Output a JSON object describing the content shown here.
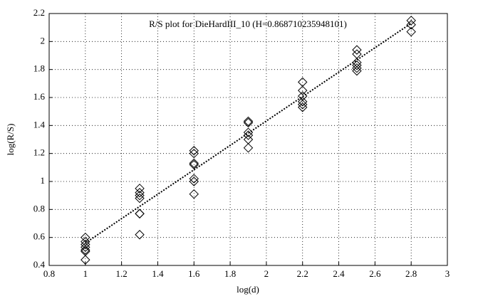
{
  "chart_data": {
    "type": "scatter",
    "title": "R/S plot for DieHardIII_10 (H=0.868710235948101)",
    "xlabel": "log(d)",
    "ylabel": "log(R/S)",
    "xlim": [
      0.8,
      3
    ],
    "ylim": [
      0.4,
      2.2
    ],
    "xticks": [
      0.8,
      1,
      1.2,
      1.4,
      1.6,
      1.8,
      2,
      2.2,
      2.4,
      2.6,
      2.8,
      3
    ],
    "yticks": [
      0.4,
      0.6,
      0.8,
      1,
      1.2,
      1.4,
      1.6,
      1.8,
      2,
      2.2
    ],
    "grid": true,
    "series": [
      {
        "type": "scatter",
        "marker": "diamond",
        "color": "#000000",
        "x": [
          1,
          1,
          1,
          1,
          1,
          1,
          1,
          1.3,
          1.3,
          1.3,
          1.3,
          1.3,
          1.3,
          1.3,
          1.6,
          1.6,
          1.6,
          1.6,
          1.6,
          1.6,
          1.6,
          1.9,
          1.9,
          1.9,
          1.9,
          1.9,
          1.9,
          2.2,
          2.2,
          2.2,
          2.2,
          2.2,
          2.2,
          2.5,
          2.5,
          2.5,
          2.5,
          2.5,
          2.5,
          2.8,
          2.8,
          2.8
        ],
        "values": [
          0.6,
          0.57,
          0.55,
          0.53,
          0.51,
          0.5,
          0.44,
          0.95,
          0.92,
          0.9,
          0.88,
          0.77,
          0.77,
          0.62,
          1.22,
          1.2,
          1.13,
          1.12,
          1.02,
          1.0,
          0.91,
          1.43,
          1.42,
          1.35,
          1.33,
          1.3,
          1.24,
          1.71,
          1.65,
          1.61,
          1.57,
          1.55,
          1.53,
          1.94,
          1.91,
          1.85,
          1.83,
          1.81,
          1.79,
          2.15,
          2.12,
          2.07
        ]
      },
      {
        "type": "line",
        "style": "dotted",
        "color": "#000000",
        "x": [
          1,
          2.8
        ],
        "values": [
          0.56,
          2.13
        ]
      }
    ]
  }
}
